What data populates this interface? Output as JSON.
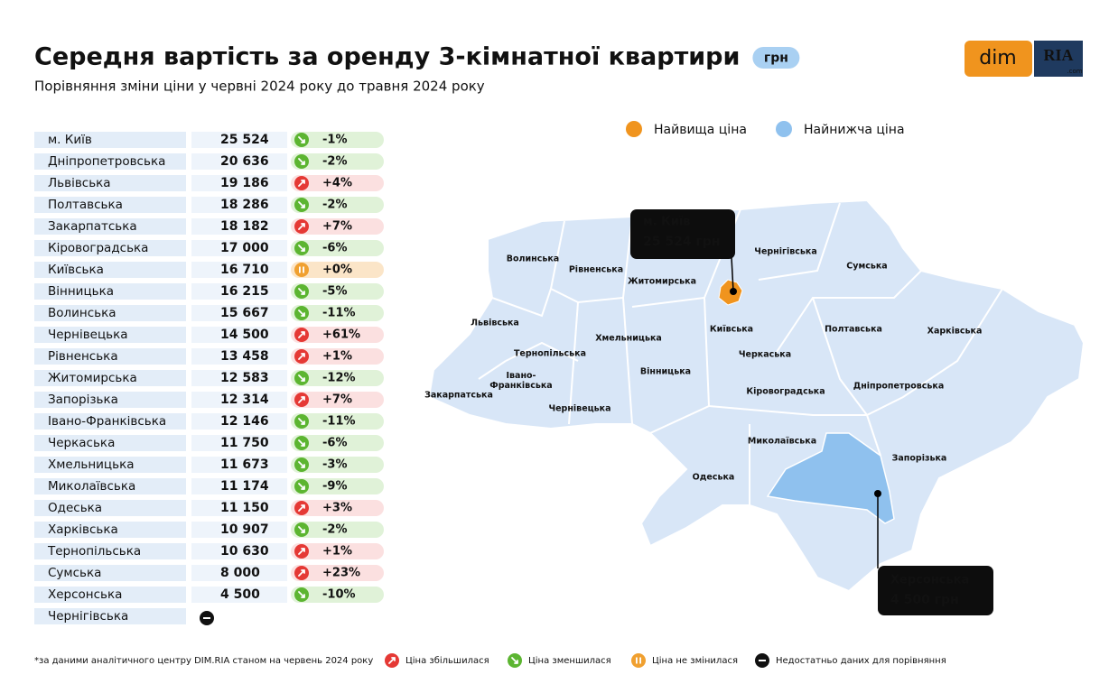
{
  "header": {
    "title": "Середня вартість за оренду 3-кімнатної квартири",
    "unit_badge": "грн",
    "subtitle": "Порівняння зміни ціни у червні 2024 року до травня 2024 року"
  },
  "logo": {
    "left": "dim",
    "right": "RIA",
    "right_sub": ".com"
  },
  "table": {
    "rows": [
      [
        "м. Київ",
        "25 524",
        "-1%"
      ],
      [
        "Дніпропетровська",
        "20 636",
        "-2%"
      ],
      [
        "Львівська",
        "19 186",
        "+4%"
      ],
      [
        "Полтавська",
        "18 286",
        "-2%"
      ],
      [
        "Закарпатська",
        "18 182",
        "+7%"
      ],
      [
        "Кіровоградська",
        "17 000",
        "-6%"
      ],
      [
        "Київська",
        "16 710",
        "+0%"
      ],
      [
        "Вінницька",
        "16 215",
        "-5%"
      ],
      [
        "Волинська",
        "15 667",
        "-11%"
      ],
      [
        "Чернівецька",
        "14 500",
        "+61%"
      ],
      [
        "Рівненська",
        "13 458",
        "+1%"
      ],
      [
        "Житомирська",
        "12 583",
        "-12%"
      ],
      [
        "Запорізька",
        "12 314",
        "+7%"
      ],
      [
        "Івано-Франківська",
        "12 146",
        "-11%"
      ],
      [
        "Черкаська",
        "11 750",
        "-6%"
      ],
      [
        "Хмельницька",
        "11 673",
        "-3%"
      ],
      [
        "Миколаївська",
        "11 174",
        "-9%"
      ],
      [
        "Одеська",
        "11 150",
        "+3%"
      ],
      [
        "Харківська",
        "10 907",
        "-2%"
      ],
      [
        "Тернопільська",
        "10 630",
        "+1%"
      ],
      [
        "Сумська",
        "8 000",
        "+23%"
      ],
      [
        "Херсонська",
        "4 500",
        "-10%"
      ],
      [
        "Чернігівська",
        null,
        null
      ]
    ]
  },
  "map": {
    "legend": [
      "Найвища ціна",
      "Найнижча ціна"
    ],
    "regions": [
      "Волинська",
      "Рівненська",
      "Житомирська",
      "Чернігівська",
      "Сумська",
      "Львівська",
      "Хмельницька",
      "Київська",
      "Полтавська",
      "Харківська",
      "Тернопільська",
      "Черкаська",
      "Івано-\nФранківська",
      "Вінницька",
      "Закарпатська",
      "Кіровоградська",
      "Дніпропетровська",
      "Чернівецька",
      "Миколаївська",
      "Запорізька",
      "Одеська"
    ],
    "callouts": [
      {
        "name": "м. Київ",
        "value": "25 524 грн"
      },
      {
        "name": "Херсонська",
        "value": "4 500 грн"
      }
    ]
  },
  "footer": {
    "note": "*за даними аналітичного центру DIM.RIA станом на червень 2024 року",
    "legend": [
      "Ціна збільшилася",
      "Ціна зменшилася",
      "Ціна не змінилася",
      "Недостатньо даних для порівняння"
    ]
  }
}
